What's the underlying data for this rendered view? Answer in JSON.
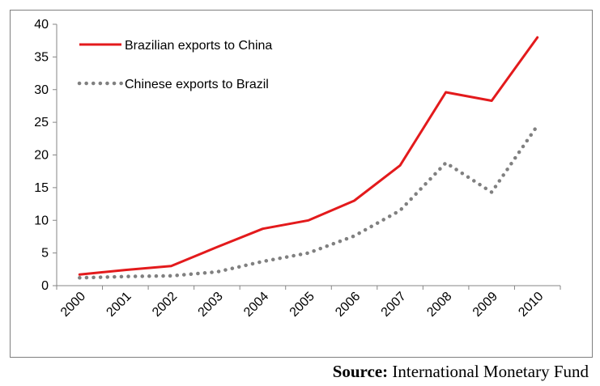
{
  "chart_data": {
    "type": "line",
    "title": "",
    "xlabel": "",
    "ylabel": "",
    "x": [
      "2000",
      "2001",
      "2002",
      "2003",
      "2004",
      "2005",
      "2006",
      "2007",
      "2008",
      "2009",
      "2010"
    ],
    "ylim": [
      0,
      40
    ],
    "yticks": [
      0,
      5,
      10,
      15,
      20,
      25,
      30,
      35,
      40
    ],
    "grid": false,
    "legend_position": "top-left",
    "series": [
      {
        "name": "Brazilian exports to China",
        "color": "#e31a1c",
        "line_style": "solid",
        "values": [
          1.7,
          2.4,
          3.0,
          5.9,
          8.7,
          10.0,
          13.0,
          18.4,
          29.6,
          28.3,
          38.0
        ]
      },
      {
        "name": "Chinese exports to Brazil",
        "color": "#808080",
        "line_style": "dotted",
        "values": [
          1.2,
          1.4,
          1.5,
          2.1,
          3.7,
          5.0,
          7.6,
          11.5,
          18.8,
          14.3,
          24.5
        ]
      }
    ]
  },
  "source": {
    "label": "Source:",
    "text": "International Monetary Fund"
  }
}
